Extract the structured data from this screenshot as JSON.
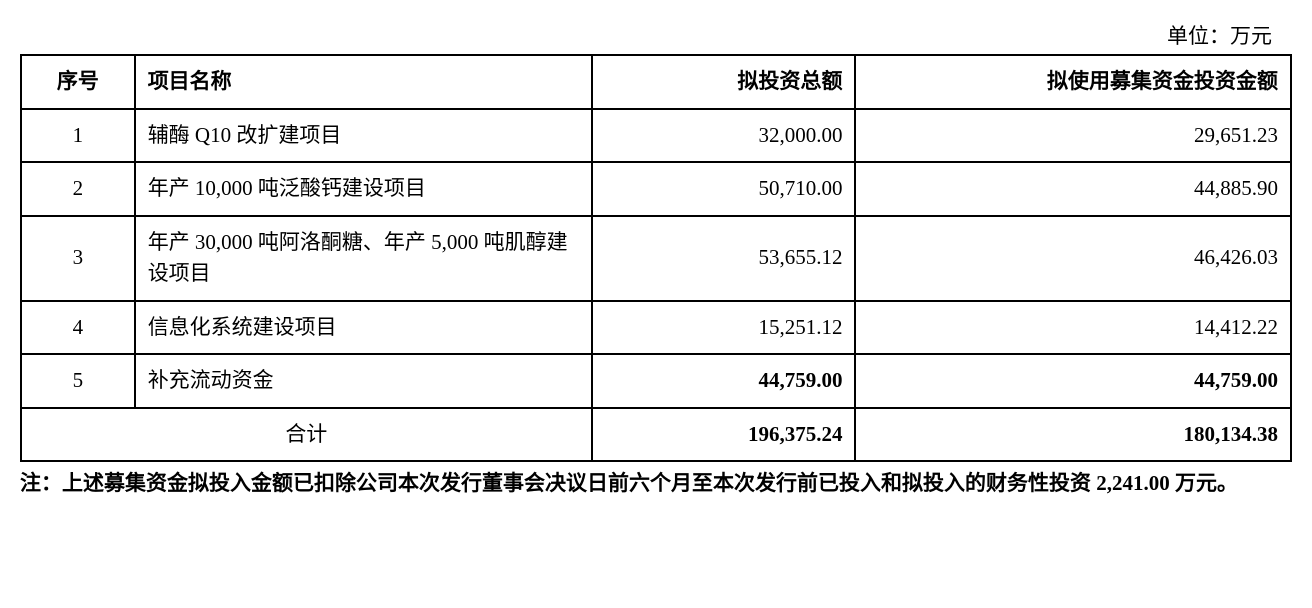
{
  "unit_label": "单位：万元",
  "table": {
    "headers": {
      "seq": "序号",
      "name": "项目名称",
      "amount1": "拟投资总额",
      "amount2": "拟使用募集资金投资金额"
    },
    "rows": [
      {
        "seq": "1",
        "name": "辅酶 Q10 改扩建项目",
        "amount1": "32,000.00",
        "amount2": "29,651.23",
        "bold": false
      },
      {
        "seq": "2",
        "name": "年产 10,000 吨泛酸钙建设项目",
        "amount1": "50,710.00",
        "amount2": "44,885.90",
        "bold": false
      },
      {
        "seq": "3",
        "name": "年产 30,000 吨阿洛酮糖、年产 5,000 吨肌醇建设项目",
        "amount1": "53,655.12",
        "amount2": "46,426.03",
        "bold": false
      },
      {
        "seq": "4",
        "name": "信息化系统建设项目",
        "amount1": "15,251.12",
        "amount2": "14,412.22",
        "bold": false
      },
      {
        "seq": "5",
        "name": "补充流动资金",
        "amount1": "44,759.00",
        "amount2": "44,759.00",
        "bold": true
      }
    ],
    "total": {
      "label": "合计",
      "amount1": "196,375.24",
      "amount2": "180,134.38"
    }
  },
  "note": "注：上述募集资金拟投入金额已扣除公司本次发行董事会决议日前六个月至本次发行前已投入和拟投入的财务性投资 2,241.00 万元。"
}
